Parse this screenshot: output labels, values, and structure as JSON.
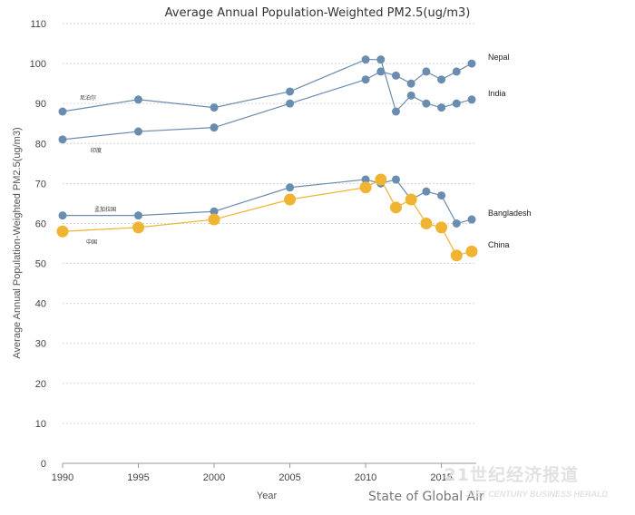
{
  "chart_data": {
    "type": "line",
    "title": "Average Annual Population-Weighted PM2.5(ug/m3)",
    "xlabel": "Year",
    "ylabel": "Average Annual Population-Weighted PM2.5(ug/m3)",
    "ylim": [
      0,
      110
    ],
    "xlim": [
      1990,
      2017
    ],
    "yticks": [
      0,
      10,
      20,
      30,
      40,
      50,
      60,
      70,
      80,
      90,
      100,
      110
    ],
    "xticks": [
      1990,
      1995,
      2000,
      2005,
      2010,
      2015
    ],
    "grid": "horizontal",
    "x": [
      1990,
      1995,
      2000,
      2005,
      2010,
      2011,
      2012,
      2013,
      2014,
      2015,
      2016,
      2017
    ],
    "series": [
      {
        "name": "Nepal",
        "cn_label": "尼泊尔",
        "color": "#6a8caf",
        "marker": "small",
        "values": [
          88,
          91,
          89,
          93,
          101,
          101,
          88,
          92,
          90,
          89,
          90,
          91
        ]
      },
      {
        "name": "India",
        "cn_label": "印度",
        "color": "#6a8caf",
        "marker": "small",
        "values": [
          81,
          83,
          84,
          90,
          96,
          98,
          97,
          95,
          98,
          96,
          98,
          100
        ]
      },
      {
        "name": "Bangladesh",
        "cn_label": "孟加拉国",
        "color": "#6a8caf",
        "marker": "small",
        "values": [
          62,
          62,
          63,
          69,
          71,
          70,
          71,
          66,
          68,
          67,
          60,
          61
        ]
      },
      {
        "name": "China",
        "cn_label": "中国",
        "color": "#f0b432",
        "marker": "large",
        "values": [
          58,
          59,
          61,
          66,
          69,
          71,
          64,
          66,
          60,
          59,
          52,
          53
        ]
      }
    ]
  },
  "source": "State of Global Air",
  "watermark": {
    "cn": "21世纪经济报道",
    "en": "21ST CENTURY BUSINESS HERALD"
  }
}
